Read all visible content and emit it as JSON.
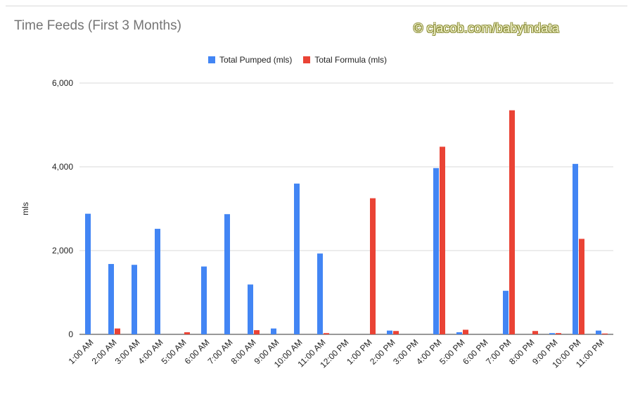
{
  "chart_data": {
    "type": "bar",
    "title": "Time Feeds (First 3 Months)",
    "watermark": "© cjacob.com/babyindata",
    "ylabel": "mls",
    "xlabel": "",
    "ylim": [
      0,
      6000
    ],
    "yticks": [
      0,
      2000,
      4000,
      6000
    ],
    "ytick_labels": [
      "0",
      "2,000",
      "4,000",
      "6,000"
    ],
    "grid": true,
    "legend_position": "top",
    "categories": [
      "1:00 AM",
      "2:00 AM",
      "3:00 AM",
      "4:00 AM",
      "5:00 AM",
      "6:00 AM",
      "7:00 AM",
      "8:00 AM",
      "9:00 AM",
      "10:00 AM",
      "11:00 AM",
      "12:00 PM",
      "1:00 PM",
      "2:00 PM",
      "3:00 PM",
      "4:00 PM",
      "5:00 PM",
      "6:00 PM",
      "7:00 PM",
      "8:00 PM",
      "9:00 PM",
      "10:00 PM",
      "11:00 PM"
    ],
    "series": [
      {
        "name": "Total Pumped (mls)",
        "color": "#4285f4",
        "values": [
          2880,
          1680,
          1660,
          2520,
          0,
          1620,
          2870,
          1190,
          140,
          3600,
          1930,
          0,
          0,
          90,
          0,
          3970,
          50,
          0,
          1040,
          0,
          30,
          4070,
          90
        ]
      },
      {
        "name": "Total Formula (mls)",
        "color": "#ea4335",
        "values": [
          0,
          140,
          0,
          0,
          50,
          0,
          0,
          100,
          0,
          0,
          30,
          0,
          3250,
          80,
          0,
          4480,
          110,
          0,
          5350,
          80,
          30,
          2280,
          20
        ]
      }
    ]
  }
}
